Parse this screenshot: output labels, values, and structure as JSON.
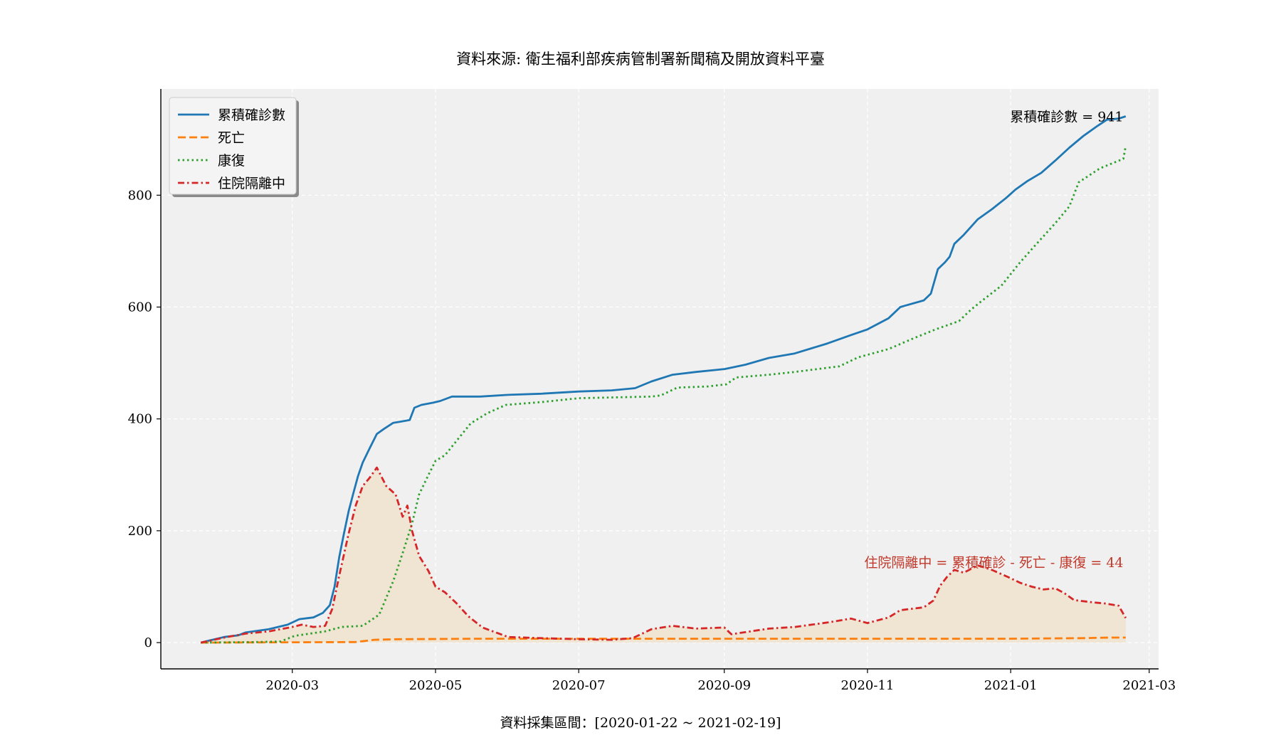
{
  "chart_data": {
    "type": "line",
    "title": "資料來源: 衛生福利部疾病管制署新聞稿及開放資料平臺",
    "xlabel": "資料採集區間：[2020-01-22 ~ 2021-02-19]",
    "ylabel": "",
    "x_range": [
      "2020-01-05",
      "2021-03-05"
    ],
    "ylim": [
      -47,
      990
    ],
    "x_ticks": [
      "2020-03",
      "2020-05",
      "2020-07",
      "2020-09",
      "2020-11",
      "2021-01",
      "2021-03"
    ],
    "y_ticks": [
      0,
      200,
      400,
      600,
      800
    ],
    "grid": true,
    "legend_position": "top-left",
    "series": [
      {
        "name": "累積確診數",
        "color": "#1f77b4",
        "dash": "solid",
        "points": [
          [
            "2020-01-22",
            0
          ],
          [
            "2020-01-26",
            4
          ],
          [
            "2020-02-01",
            10
          ],
          [
            "2020-02-07",
            13
          ],
          [
            "2020-02-10",
            18
          ],
          [
            "2020-02-20",
            24
          ],
          [
            "2020-02-28",
            32
          ],
          [
            "2020-03-04",
            42
          ],
          [
            "2020-03-10",
            45
          ],
          [
            "2020-03-14",
            53
          ],
          [
            "2020-03-17",
            67
          ],
          [
            "2020-03-19",
            100
          ],
          [
            "2020-03-21",
            153
          ],
          [
            "2020-03-23",
            195
          ],
          [
            "2020-03-25",
            235
          ],
          [
            "2020-03-27",
            267
          ],
          [
            "2020-03-29",
            298
          ],
          [
            "2020-03-31",
            322
          ],
          [
            "2020-04-03",
            348
          ],
          [
            "2020-04-06",
            373
          ],
          [
            "2020-04-09",
            382
          ],
          [
            "2020-04-13",
            393
          ],
          [
            "2020-04-16",
            395
          ],
          [
            "2020-04-20",
            398
          ],
          [
            "2020-04-22",
            420
          ],
          [
            "2020-04-25",
            425
          ],
          [
            "2020-04-30",
            429
          ],
          [
            "2020-05-03",
            432
          ],
          [
            "2020-05-08",
            440
          ],
          [
            "2020-05-20",
            440
          ],
          [
            "2020-06-01",
            443
          ],
          [
            "2020-06-15",
            445
          ],
          [
            "2020-07-01",
            449
          ],
          [
            "2020-07-15",
            451
          ],
          [
            "2020-07-25",
            455
          ],
          [
            "2020-08-01",
            467
          ],
          [
            "2020-08-10",
            479
          ],
          [
            "2020-08-20",
            484
          ],
          [
            "2020-09-01",
            489
          ],
          [
            "2020-09-10",
            497
          ],
          [
            "2020-09-20",
            509
          ],
          [
            "2020-10-01",
            517
          ],
          [
            "2020-10-15",
            535
          ],
          [
            "2020-10-25",
            550
          ],
          [
            "2020-11-01",
            560
          ],
          [
            "2020-11-10",
            580
          ],
          [
            "2020-11-15",
            600
          ],
          [
            "2020-11-25",
            612
          ],
          [
            "2020-11-28",
            624
          ],
          [
            "2020-12-01",
            668
          ],
          [
            "2020-12-04",
            680
          ],
          [
            "2020-12-06",
            690
          ],
          [
            "2020-12-08",
            713
          ],
          [
            "2020-12-12",
            729
          ],
          [
            "2020-12-18",
            757
          ],
          [
            "2020-12-24",
            775
          ],
          [
            "2020-12-30",
            795
          ],
          [
            "2021-01-03",
            810
          ],
          [
            "2021-01-08",
            825
          ],
          [
            "2021-01-14",
            840
          ],
          [
            "2021-01-20",
            862
          ],
          [
            "2021-01-26",
            885
          ],
          [
            "2021-02-01",
            906
          ],
          [
            "2021-02-07",
            924
          ],
          [
            "2021-02-11",
            935
          ],
          [
            "2021-02-16",
            937
          ],
          [
            "2021-02-19",
            941
          ]
        ]
      },
      {
        "name": "死亡",
        "color": "#ff7f0e",
        "dash": "dashed",
        "points": [
          [
            "2020-01-22",
            0
          ],
          [
            "2020-03-28",
            1
          ],
          [
            "2020-04-05",
            5
          ],
          [
            "2020-04-15",
            6
          ],
          [
            "2020-05-20",
            7
          ],
          [
            "2020-12-31",
            7
          ],
          [
            "2021-02-01",
            8
          ],
          [
            "2021-02-12",
            9
          ],
          [
            "2021-02-19",
            9
          ]
        ]
      },
      {
        "name": "康復",
        "color": "#2ca02c",
        "dash": "dotted",
        "points": [
          [
            "2020-01-22",
            0
          ],
          [
            "2020-02-15",
            1
          ],
          [
            "2020-02-25",
            2
          ],
          [
            "2020-03-02",
            12
          ],
          [
            "2020-03-15",
            20
          ],
          [
            "2020-03-22",
            28
          ],
          [
            "2020-03-31",
            30
          ],
          [
            "2020-04-07",
            50
          ],
          [
            "2020-04-13",
            110
          ],
          [
            "2020-04-17",
            160
          ],
          [
            "2020-04-21",
            213
          ],
          [
            "2020-04-24",
            265
          ],
          [
            "2020-04-28",
            300
          ],
          [
            "2020-05-01",
            325
          ],
          [
            "2020-05-05",
            335
          ],
          [
            "2020-05-10",
            361
          ],
          [
            "2020-05-16",
            392
          ],
          [
            "2020-05-23",
            410
          ],
          [
            "2020-05-31",
            425
          ],
          [
            "2020-06-15",
            430
          ],
          [
            "2020-07-01",
            437
          ],
          [
            "2020-08-01",
            440
          ],
          [
            "2020-08-05",
            442
          ],
          [
            "2020-08-12",
            456
          ],
          [
            "2020-08-25",
            458
          ],
          [
            "2020-09-02",
            462
          ],
          [
            "2020-09-06",
            474
          ],
          [
            "2020-09-20",
            479
          ],
          [
            "2020-10-01",
            484
          ],
          [
            "2020-10-20",
            494
          ],
          [
            "2020-10-28",
            510
          ],
          [
            "2020-11-10",
            525
          ],
          [
            "2020-11-20",
            543
          ],
          [
            "2020-11-30",
            560
          ],
          [
            "2020-12-10",
            575
          ],
          [
            "2020-12-15",
            595
          ],
          [
            "2020-12-20",
            612
          ],
          [
            "2020-12-28",
            638
          ],
          [
            "2021-01-05",
            680
          ],
          [
            "2021-01-12",
            713
          ],
          [
            "2021-01-20",
            750
          ],
          [
            "2021-01-26",
            780
          ],
          [
            "2021-01-30",
            823
          ],
          [
            "2021-02-08",
            848
          ],
          [
            "2021-02-18",
            865
          ],
          [
            "2021-02-19",
            888
          ]
        ]
      },
      {
        "name": "住院隔離中",
        "color": "#d62728",
        "dash": "dashdot",
        "points": [
          [
            "2020-01-22",
            0
          ],
          [
            "2020-02-01",
            9
          ],
          [
            "2020-02-10",
            16
          ],
          [
            "2020-02-20",
            20
          ],
          [
            "2020-03-01",
            28
          ],
          [
            "2020-03-05",
            32
          ],
          [
            "2020-03-10",
            28
          ],
          [
            "2020-03-15",
            30
          ],
          [
            "2020-03-18",
            60
          ],
          [
            "2020-03-21",
            120
          ],
          [
            "2020-03-25",
            195
          ],
          [
            "2020-03-28",
            245
          ],
          [
            "2020-03-31",
            280
          ],
          [
            "2020-04-03",
            295
          ],
          [
            "2020-04-06",
            313
          ],
          [
            "2020-04-10",
            280
          ],
          [
            "2020-04-14",
            265
          ],
          [
            "2020-04-17",
            225
          ],
          [
            "2020-04-19",
            245
          ],
          [
            "2020-04-21",
            200
          ],
          [
            "2020-04-24",
            155
          ],
          [
            "2020-04-28",
            128
          ],
          [
            "2020-05-01",
            100
          ],
          [
            "2020-05-05",
            90
          ],
          [
            "2020-05-10",
            70
          ],
          [
            "2020-05-15",
            47
          ],
          [
            "2020-05-21",
            27
          ],
          [
            "2020-06-01",
            10
          ],
          [
            "2020-06-15",
            8
          ],
          [
            "2020-07-01",
            6
          ],
          [
            "2020-07-15",
            5
          ],
          [
            "2020-07-24",
            8
          ],
          [
            "2020-08-01",
            24
          ],
          [
            "2020-08-10",
            30
          ],
          [
            "2020-08-20",
            25
          ],
          [
            "2020-09-01",
            27
          ],
          [
            "2020-09-04",
            15
          ],
          [
            "2020-09-20",
            25
          ],
          [
            "2020-10-01",
            28
          ],
          [
            "2020-10-15",
            36
          ],
          [
            "2020-10-25",
            43
          ],
          [
            "2020-11-01",
            35
          ],
          [
            "2020-11-10",
            45
          ],
          [
            "2020-11-15",
            58
          ],
          [
            "2020-11-25",
            63
          ],
          [
            "2020-11-29",
            75
          ],
          [
            "2020-12-02",
            102
          ],
          [
            "2020-12-05",
            118
          ],
          [
            "2020-12-08",
            130
          ],
          [
            "2020-12-12",
            125
          ],
          [
            "2020-12-18",
            138
          ],
          [
            "2020-12-24",
            130
          ],
          [
            "2020-12-31",
            117
          ],
          [
            "2021-01-05",
            107
          ],
          [
            "2021-01-10",
            100
          ],
          [
            "2021-01-15",
            95
          ],
          [
            "2021-01-20",
            97
          ],
          [
            "2021-01-24",
            88
          ],
          [
            "2021-01-28",
            76
          ],
          [
            "2021-02-05",
            72
          ],
          [
            "2021-02-10",
            70
          ],
          [
            "2021-02-16",
            66
          ],
          [
            "2021-02-19",
            44
          ]
        ]
      }
    ],
    "annotations": [
      {
        "text": "累積確診數 = 941",
        "color": "#000000",
        "at": [
          "2021-02-18",
          941
        ]
      },
      {
        "text": "住院隔離中 = 累積確診 - 死亡 - 康復 = 44",
        "color": "#c0392b",
        "at": [
          "2021-02-18",
          130
        ]
      }
    ],
    "fill_color": "#f0e4d2"
  }
}
